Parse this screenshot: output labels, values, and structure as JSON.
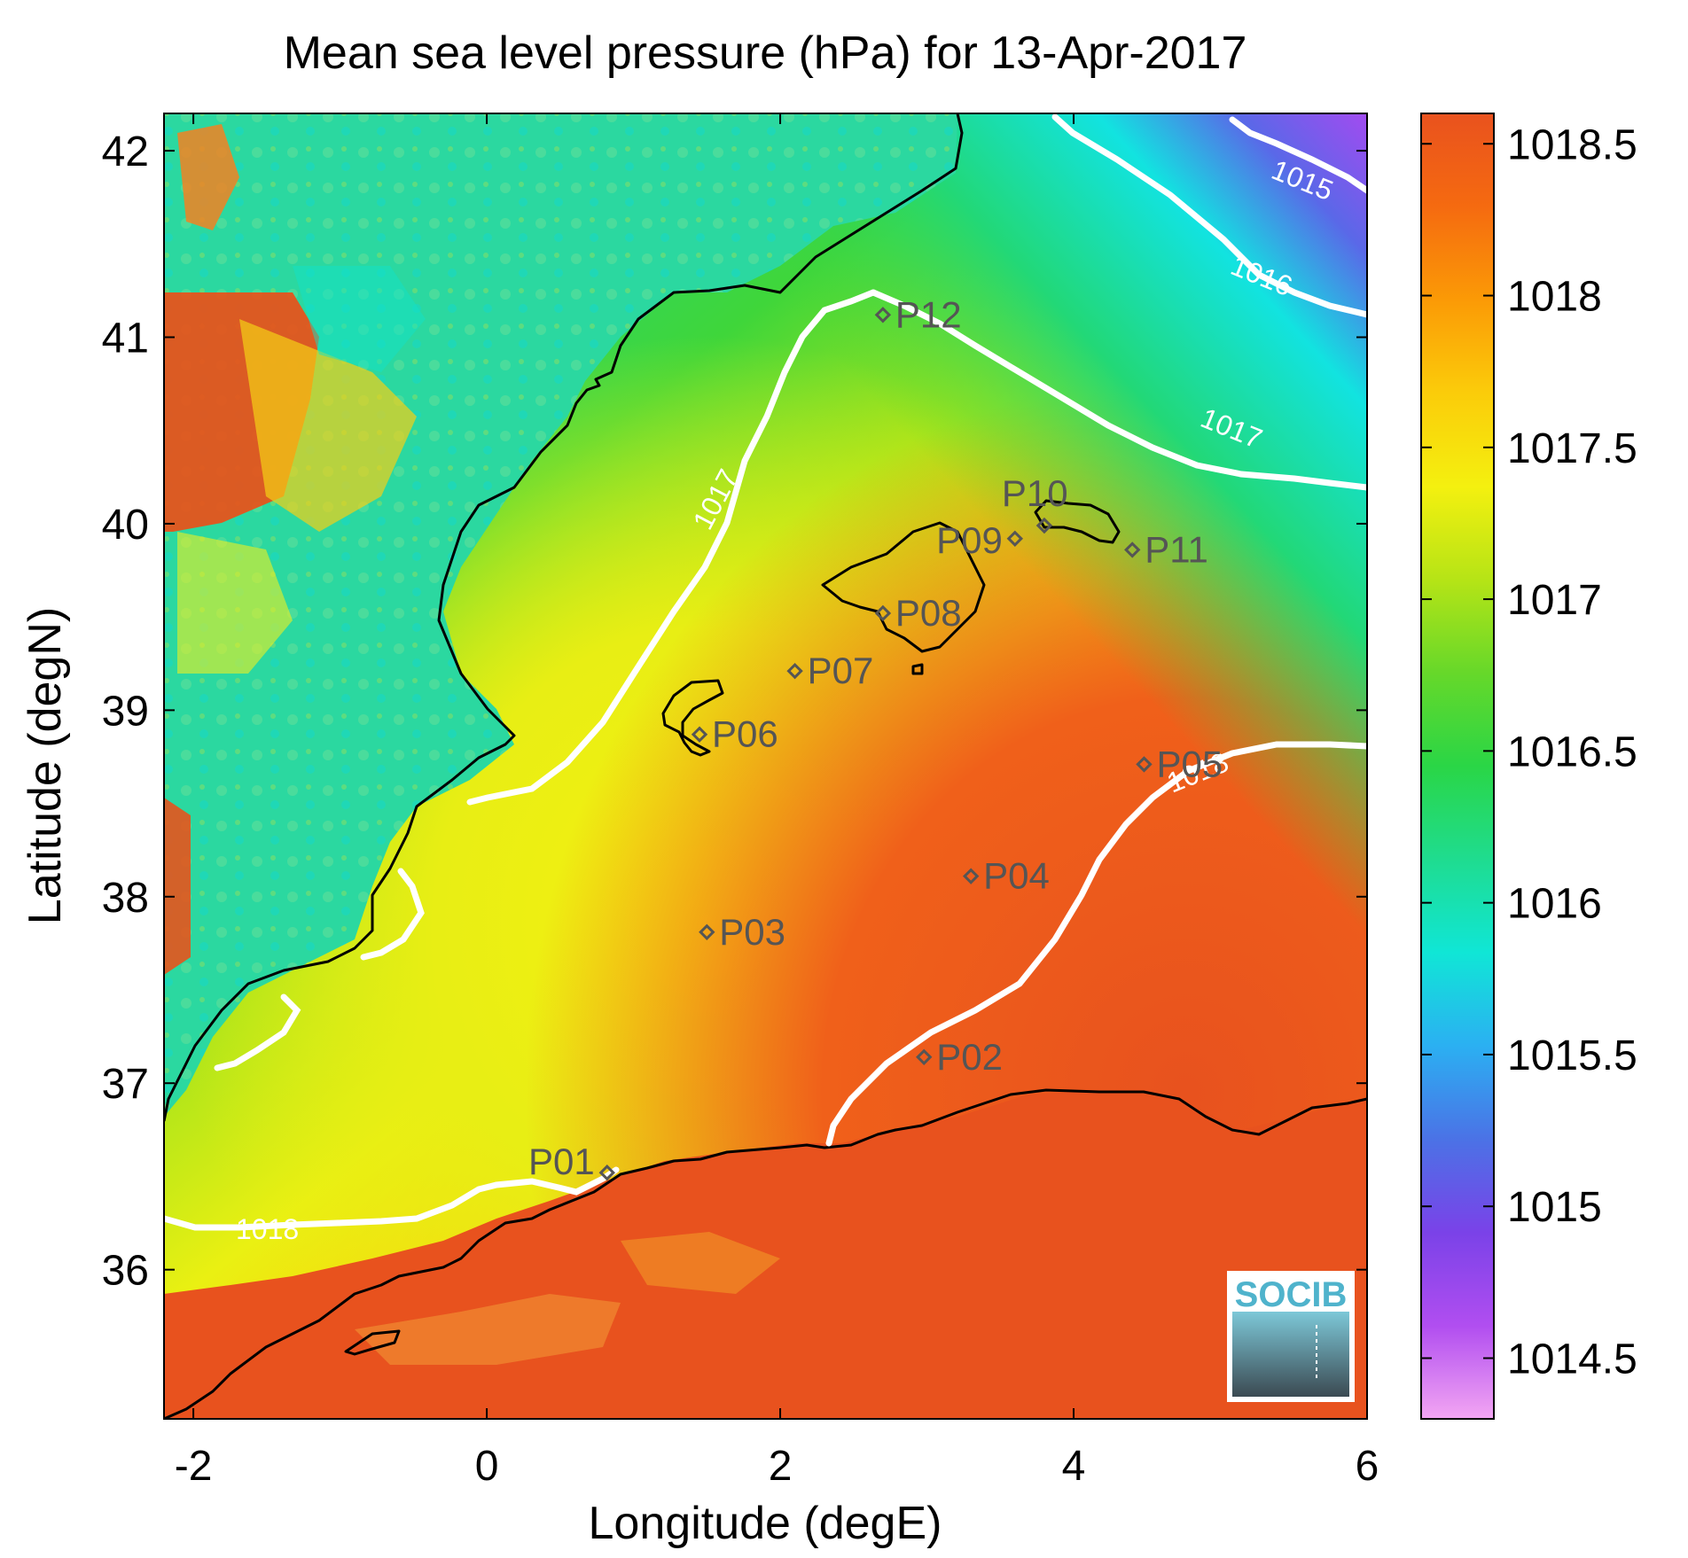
{
  "figure": {
    "title": "Mean sea level pressure (hPa) for 13-Apr-2017",
    "xlabel": "Longitude (degE)",
    "ylabel": "Latitude (degN)",
    "logo_text": "SOCIB"
  },
  "chart_data": {
    "type": "heatmap",
    "title": "Mean sea level pressure (hPa) for 13-Apr-2017",
    "xlabel": "Longitude (degE)",
    "ylabel": "Latitude (degN)",
    "xlim": [
      -2.2,
      6.0
    ],
    "ylim": [
      35.2,
      42.2
    ],
    "x_ticks": [
      -2,
      0,
      2,
      4,
      6
    ],
    "x_tick_labels": [
      "-2",
      "0",
      "2",
      "4",
      "6"
    ],
    "y_ticks": [
      36,
      37,
      38,
      39,
      40,
      41,
      42
    ],
    "y_tick_labels": [
      "36",
      "37",
      "38",
      "39",
      "40",
      "41",
      "42"
    ],
    "colorbar": {
      "range": [
        1014.3,
        1018.6
      ],
      "ticks": [
        1014.5,
        1015,
        1015.5,
        1016,
        1016.5,
        1017,
        1017.5,
        1018,
        1018.5
      ],
      "tick_labels": [
        "1014.5",
        "1015",
        "1015.5",
        "1016",
        "1016.5",
        "1017",
        "1017.5",
        "1018",
        "1018.5"
      ],
      "colors": [
        "#f3a6f3",
        "#b14ef0",
        "#7a42e8",
        "#4b72e6",
        "#2bb0f2",
        "#10e6d6",
        "#1fdc8f",
        "#2ad646",
        "#66d82a",
        "#b6e416",
        "#f4f00f",
        "#fbcc0a",
        "#fb9a06",
        "#f56a10",
        "#e9521e"
      ]
    },
    "contours": [
      {
        "level": "1015",
        "label": "1015"
      },
      {
        "level": "1016",
        "label": "1016"
      },
      {
        "level": "1017",
        "label": "1017"
      },
      {
        "level": "1017",
        "label": "1017"
      },
      {
        "level": "1018",
        "label": "1018"
      },
      {
        "level": "1018",
        "label": "1018"
      }
    ],
    "points": [
      {
        "name": "P01",
        "lon": 0.82,
        "lat": 36.52
      },
      {
        "name": "P02",
        "lon": 2.98,
        "lat": 37.14
      },
      {
        "name": "P03",
        "lon": 1.5,
        "lat": 37.81
      },
      {
        "name": "P04",
        "lon": 3.3,
        "lat": 38.11
      },
      {
        "name": "P05",
        "lon": 4.48,
        "lat": 38.71
      },
      {
        "name": "P06",
        "lon": 1.45,
        "lat": 38.87
      },
      {
        "name": "P07",
        "lon": 2.1,
        "lat": 39.21
      },
      {
        "name": "P08",
        "lon": 2.7,
        "lat": 39.52
      },
      {
        "name": "P09",
        "lon": 3.6,
        "lat": 39.92
      },
      {
        "name": "P10",
        "lon": 3.8,
        "lat": 39.99
      },
      {
        "name": "P11",
        "lon": 4.4,
        "lat": 39.86
      },
      {
        "name": "P12",
        "lon": 2.7,
        "lat": 41.12
      }
    ]
  }
}
